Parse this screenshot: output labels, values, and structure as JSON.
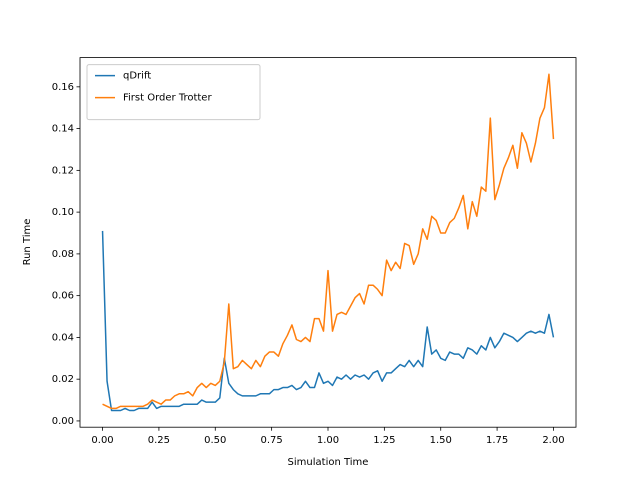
{
  "chart_data": {
    "type": "line",
    "xlabel": "Simulation Time",
    "ylabel": "Run Time",
    "x": [
      0,
      0.02,
      0.04,
      0.06,
      0.08,
      0.1,
      0.12,
      0.14,
      0.16,
      0.18,
      0.2,
      0.22,
      0.24,
      0.26,
      0.28,
      0.3,
      0.32,
      0.34,
      0.36,
      0.38,
      0.4,
      0.42,
      0.44,
      0.46,
      0.48,
      0.5,
      0.52,
      0.54,
      0.56,
      0.58,
      0.6,
      0.62,
      0.64,
      0.66,
      0.68,
      0.7,
      0.72,
      0.74,
      0.76,
      0.78,
      0.8,
      0.82,
      0.84,
      0.86,
      0.88,
      0.9,
      0.92,
      0.94,
      0.96,
      0.98,
      1,
      1.02,
      1.04,
      1.06,
      1.08,
      1.1,
      1.12,
      1.14,
      1.16,
      1.18,
      1.2,
      1.22,
      1.24,
      1.26,
      1.28,
      1.3,
      1.32,
      1.34,
      1.36,
      1.38,
      1.4,
      1.42,
      1.44,
      1.46,
      1.48,
      1.5,
      1.52,
      1.54,
      1.56,
      1.58,
      1.6,
      1.62,
      1.64,
      1.66,
      1.68,
      1.7,
      1.72,
      1.74,
      1.76,
      1.78,
      1.8,
      1.82,
      1.84,
      1.86,
      1.88,
      1.9,
      1.92,
      1.94,
      1.96,
      1.98,
      2
    ],
    "series": [
      {
        "name": "qDrift",
        "color": "#1f77b4",
        "values": [
          0.091,
          0.019,
          0.005,
          0.005,
          0.005,
          0.006,
          0.005,
          0.005,
          0.006,
          0.006,
          0.006,
          0.009,
          0.006,
          0.007,
          0.007,
          0.007,
          0.007,
          0.007,
          0.008,
          0.008,
          0.008,
          0.008,
          0.01,
          0.009,
          0.009,
          0.009,
          0.011,
          0.03,
          0.018,
          0.015,
          0.013,
          0.012,
          0.012,
          0.012,
          0.012,
          0.013,
          0.013,
          0.013,
          0.015,
          0.015,
          0.016,
          0.016,
          0.017,
          0.015,
          0.016,
          0.019,
          0.016,
          0.016,
          0.023,
          0.018,
          0.019,
          0.017,
          0.021,
          0.02,
          0.022,
          0.02,
          0.022,
          0.021,
          0.022,
          0.02,
          0.023,
          0.024,
          0.019,
          0.023,
          0.023,
          0.025,
          0.027,
          0.026,
          0.029,
          0.026,
          0.029,
          0.026,
          0.045,
          0.032,
          0.034,
          0.03,
          0.029,
          0.033,
          0.032,
          0.032,
          0.03,
          0.035,
          0.034,
          0.032,
          0.036,
          0.034,
          0.04,
          0.035,
          0.038,
          0.042,
          0.041,
          0.04,
          0.038,
          0.04,
          0.042,
          0.043,
          0.042,
          0.043,
          0.042,
          0.051,
          0.04
        ]
      },
      {
        "name": "First Order Trotter",
        "color": "#ff7f0e",
        "values": [
          0.008,
          0.007,
          0.006,
          0.006,
          0.007,
          0.007,
          0.007,
          0.007,
          0.007,
          0.007,
          0.008,
          0.01,
          0.009,
          0.008,
          0.01,
          0.01,
          0.012,
          0.013,
          0.013,
          0.014,
          0.012,
          0.016,
          0.018,
          0.016,
          0.018,
          0.017,
          0.019,
          0.028,
          0.056,
          0.025,
          0.026,
          0.029,
          0.027,
          0.025,
          0.029,
          0.026,
          0.031,
          0.033,
          0.033,
          0.031,
          0.037,
          0.041,
          0.046,
          0.039,
          0.038,
          0.04,
          0.038,
          0.049,
          0.049,
          0.043,
          0.072,
          0.043,
          0.051,
          0.052,
          0.051,
          0.055,
          0.059,
          0.061,
          0.056,
          0.065,
          0.065,
          0.063,
          0.06,
          0.077,
          0.072,
          0.076,
          0.073,
          0.085,
          0.084,
          0.075,
          0.08,
          0.092,
          0.087,
          0.098,
          0.096,
          0.09,
          0.09,
          0.095,
          0.097,
          0.102,
          0.108,
          0.092,
          0.105,
          0.098,
          0.112,
          0.11,
          0.145,
          0.106,
          0.113,
          0.121,
          0.126,
          0.132,
          0.121,
          0.138,
          0.133,
          0.124,
          0.133,
          0.145,
          0.15,
          0.166,
          0.135
        ]
      }
    ],
    "xlim": [
      -0.1,
      2.1
    ],
    "xticks": [
      {
        "value": 0,
        "label": "0.00"
      },
      {
        "value": 0.25,
        "label": "0.25"
      },
      {
        "value": 0.5,
        "label": "0.50"
      },
      {
        "value": 0.75,
        "label": "0.75"
      },
      {
        "value": 1,
        "label": "1.00"
      },
      {
        "value": 1.25,
        "label": "1.25"
      },
      {
        "value": 1.5,
        "label": "1.50"
      },
      {
        "value": 1.75,
        "label": "1.75"
      },
      {
        "value": 2,
        "label": "2.00"
      }
    ],
    "ylim": [
      -0.003,
      0.174
    ],
    "yticks": [
      {
        "value": 0,
        "label": "0.00"
      },
      {
        "value": 0.02,
        "label": "0.02"
      },
      {
        "value": 0.04,
        "label": "0.04"
      },
      {
        "value": 0.06,
        "label": "0.06"
      },
      {
        "value": 0.08,
        "label": "0.08"
      },
      {
        "value": 0.1,
        "label": "0.10"
      },
      {
        "value": 0.12,
        "label": "0.12"
      },
      {
        "value": 0.14,
        "label": "0.14"
      },
      {
        "value": 0.16,
        "label": "0.16"
      }
    ],
    "legend": "upper left",
    "grid": false
  }
}
